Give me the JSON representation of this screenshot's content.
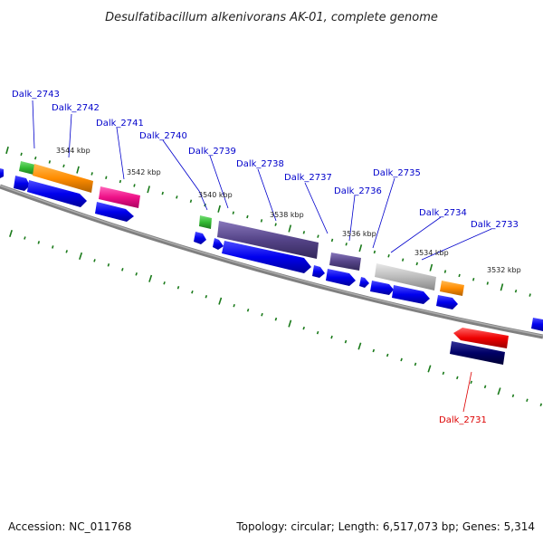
{
  "title": "Desulfatibacillum alkenivorans AK-01, complete genome",
  "footer": {
    "accession": "Accession: NC_011768",
    "topology": "Topology: circular; Length: 6,517,073 bp; Genes: 5,314"
  },
  "kbp_labels": [
    "3544 kbp",
    "3542 kbp",
    "3540 kbp",
    "3538 kbp",
    "3536 kbp",
    "3534 kbp",
    "3532 kbp"
  ],
  "genes": [
    {
      "id": "Dalk_2743",
      "color": "#0000cc"
    },
    {
      "id": "Dalk_2742",
      "color": "#0000cc"
    },
    {
      "id": "Dalk_2741",
      "color": "#0000cc"
    },
    {
      "id": "Dalk_2740",
      "color": "#0000cc"
    },
    {
      "id": "Dalk_2739",
      "color": "#0000cc"
    },
    {
      "id": "Dalk_2738",
      "color": "#0000cc"
    },
    {
      "id": "Dalk_2737",
      "color": "#0000cc"
    },
    {
      "id": "Dalk_2736",
      "color": "#0000cc"
    },
    {
      "id": "Dalk_2735",
      "color": "#0000cc"
    },
    {
      "id": "Dalk_2734",
      "color": "#0000cc"
    },
    {
      "id": "Dalk_2733",
      "color": "#0000cc"
    },
    {
      "id": "Dalk_2731",
      "color": "#dd0000"
    }
  ],
  "colors": {
    "backbone": "#808080",
    "tick": "#1a7a1a",
    "blue_cds": "#0000ee",
    "green": "#33bb33",
    "orange": "#ff8c00",
    "magenta": "#ee1188",
    "slate": "#554488",
    "gray": "#bbbbbb",
    "red": "#ee0000",
    "navy": "#000066"
  }
}
